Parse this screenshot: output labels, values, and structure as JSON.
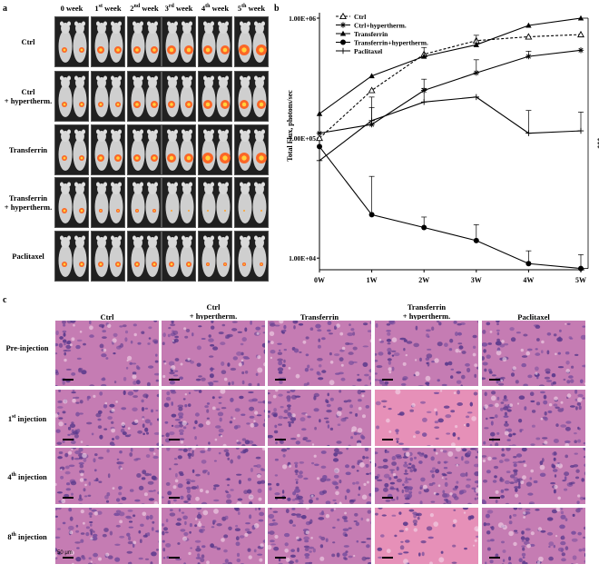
{
  "panel_a": {
    "letter": "a",
    "weeks": [
      "0 week",
      "1st week",
      "2nd week",
      "3rd week",
      "4th week",
      "5th week"
    ],
    "week_sup": [
      "",
      "st",
      "nd",
      "rd",
      "th",
      "th"
    ],
    "groups": [
      "Ctrl",
      "Ctrl + hypertherm.",
      "Transferrin",
      "Transferrin + hypertherm.",
      "Paclitaxel"
    ],
    "group_lines": [
      [
        "Ctrl"
      ],
      [
        "Ctrl",
        "+ hypertherm."
      ],
      [
        "Transferrin"
      ],
      [
        "Transferrin",
        "+ hypertherm."
      ],
      [
        "Paclitaxel"
      ]
    ]
  },
  "panel_c": {
    "letter": "c",
    "columns": [
      [
        "Ctrl"
      ],
      [
        "Ctrl",
        "+ hypertherm."
      ],
      [
        "Transferrin"
      ],
      [
        "Transferrin",
        "+ hypertherm."
      ],
      [
        "Paclitaxel"
      ]
    ],
    "rows": [
      "Pre-injection",
      "1st injection",
      "4th injection",
      "8th injection"
    ],
    "row_sup": [
      "",
      "st",
      "th",
      "th"
    ],
    "scale_label": "50 μm"
  },
  "colors": {
    "hist_bg": "#c57cb3",
    "hist_pink": "#e690b8",
    "mouse_bg": "#202020",
    "signal": "#ff5a14"
  },
  "chart_data": {
    "type": "line",
    "panel_letter": "b",
    "ylabel": "Total Flux, photons/sec",
    "yscale": "log",
    "ylim": [
      8000,
      1000000
    ],
    "yticks": [
      "1.00E+06",
      "1.00E+05",
      "1.00E+04"
    ],
    "ytick_values": [
      1000000,
      100000,
      10000
    ],
    "categories": [
      "0W",
      "1W",
      "2W",
      "3W",
      "4W",
      "5W"
    ],
    "significance": "***",
    "series": [
      {
        "name": "Ctrl",
        "values": [
          100000,
          250000,
          500000,
          650000,
          700000,
          730000
        ],
        "err": [
          0,
          0,
          0,
          0,
          0,
          0
        ],
        "marker": "open-triangle",
        "dash": true
      },
      {
        "name": "Ctrl+hypertherm.",
        "values": [
          110000,
          130000,
          250000,
          350000,
          480000,
          540000
        ],
        "err": [
          0,
          50000,
          60000,
          100000,
          50000,
          0
        ],
        "marker": "star",
        "dash": false
      },
      {
        "name": "Transferrin",
        "values": [
          160000,
          330000,
          480000,
          600000,
          870000,
          1000000
        ],
        "err": [
          0,
          0,
          90000,
          120000,
          0,
          0
        ],
        "marker": "filled-triangle",
        "dash": false
      },
      {
        "name": "Transferrin+hypertherm.",
        "values": [
          85000,
          23000,
          18000,
          14000,
          9000,
          8200
        ],
        "err": [
          0,
          25000,
          4000,
          5000,
          2500,
          2500
        ],
        "marker": "filled-circle",
        "dash": false
      },
      {
        "name": "Paclitaxel",
        "values": [
          65000,
          140000,
          200000,
          220000,
          110000,
          115000
        ],
        "err": [
          0,
          80000,
          60000,
          0,
          60000,
          50000
        ],
        "marker": "plus",
        "dash": false
      }
    ]
  }
}
